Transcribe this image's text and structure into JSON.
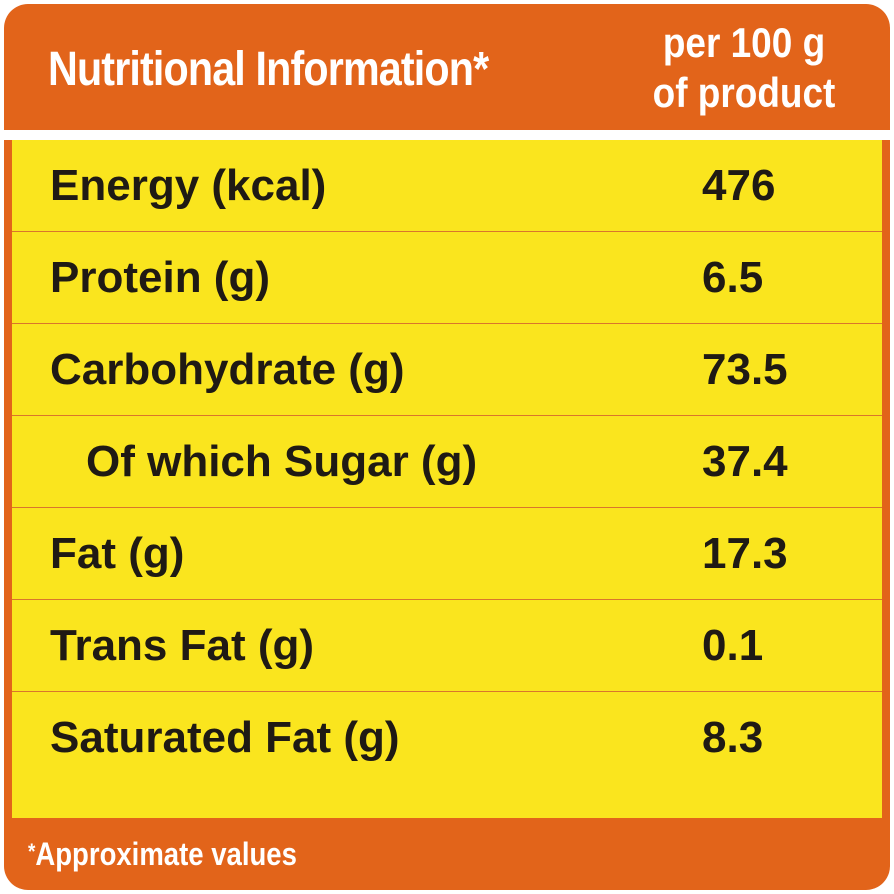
{
  "header": {
    "title": "Nutritional Information*",
    "per_line1": "per 100 g",
    "per_line2": "of product"
  },
  "rows": [
    {
      "label": "Energy (kcal)",
      "value": "476"
    },
    {
      "label": "Protein (g)",
      "value": "6.5"
    },
    {
      "label": "Carbohydrate (g)",
      "value": "73.5"
    },
    {
      "label": "Of which Sugar (g)",
      "value": "37.4"
    },
    {
      "label": "Fat (g)",
      "value": "17.3"
    },
    {
      "label": "Trans Fat (g)",
      "value": "0.1"
    },
    {
      "label": "Saturated Fat (g)",
      "value": "8.3"
    }
  ],
  "footer": {
    "asterisk": "*",
    "note": "Approximate values"
  },
  "colors": {
    "frame": "#e2641a",
    "table_background": "#fae51e",
    "row_divider": "#d9762c",
    "text_dark": "#1f1a14",
    "text_light": "#ffffff"
  }
}
